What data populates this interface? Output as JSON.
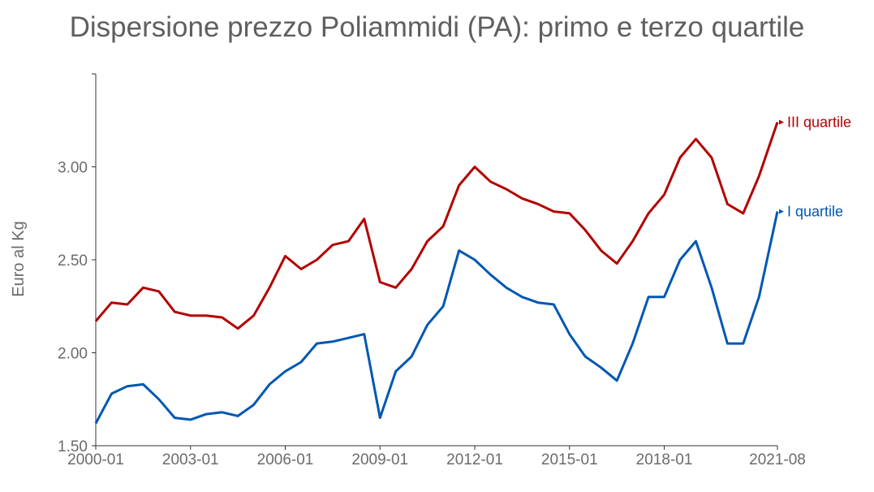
{
  "chart_data": {
    "type": "line",
    "title": "Dispersione prezzo Poliammidi (PA): primo e terzo quartile",
    "xlabel": "",
    "ylabel": "Euro al Kg",
    "ylim": [
      1.5,
      3.5
    ],
    "yticks": [
      "1.50",
      "2.00",
      "2.50",
      "3.00"
    ],
    "xticks": [
      "2000-01",
      "2003-01",
      "2006-01",
      "2009-01",
      "2012-01",
      "2015-01",
      "2018-01",
      "2021-08"
    ],
    "series": [
      {
        "name": "III quartile",
        "color": "#b30000",
        "points": [
          [
            "2000-01",
            2.17
          ],
          [
            "2000-07",
            2.27
          ],
          [
            "2001-01",
            2.26
          ],
          [
            "2001-07",
            2.35
          ],
          [
            "2002-01",
            2.33
          ],
          [
            "2002-07",
            2.22
          ],
          [
            "2003-01",
            2.2
          ],
          [
            "2003-07",
            2.2
          ],
          [
            "2004-01",
            2.19
          ],
          [
            "2004-07",
            2.13
          ],
          [
            "2005-01",
            2.2
          ],
          [
            "2005-07",
            2.35
          ],
          [
            "2006-01",
            2.52
          ],
          [
            "2006-07",
            2.45
          ],
          [
            "2007-01",
            2.5
          ],
          [
            "2007-07",
            2.58
          ],
          [
            "2008-01",
            2.6
          ],
          [
            "2008-07",
            2.72
          ],
          [
            "2009-01",
            2.38
          ],
          [
            "2009-07",
            2.35
          ],
          [
            "2010-01",
            2.45
          ],
          [
            "2010-07",
            2.6
          ],
          [
            "2011-01",
            2.68
          ],
          [
            "2011-07",
            2.9
          ],
          [
            "2012-01",
            3.0
          ],
          [
            "2012-07",
            2.92
          ],
          [
            "2013-01",
            2.88
          ],
          [
            "2013-07",
            2.83
          ],
          [
            "2014-01",
            2.8
          ],
          [
            "2014-07",
            2.76
          ],
          [
            "2015-01",
            2.75
          ],
          [
            "2015-07",
            2.66
          ],
          [
            "2016-01",
            2.55
          ],
          [
            "2016-07",
            2.48
          ],
          [
            "2017-01",
            2.6
          ],
          [
            "2017-07",
            2.75
          ],
          [
            "2018-01",
            2.85
          ],
          [
            "2018-07",
            3.05
          ],
          [
            "2019-01",
            3.15
          ],
          [
            "2019-07",
            3.05
          ],
          [
            "2020-01",
            2.8
          ],
          [
            "2020-07",
            2.75
          ],
          [
            "2021-01",
            2.95
          ],
          [
            "2021-08",
            3.24
          ]
        ]
      },
      {
        "name": "I quartile",
        "color": "#0057b3",
        "points": [
          [
            "2000-01",
            1.62
          ],
          [
            "2000-07",
            1.78
          ],
          [
            "2001-01",
            1.82
          ],
          [
            "2001-07",
            1.83
          ],
          [
            "2002-01",
            1.75
          ],
          [
            "2002-07",
            1.65
          ],
          [
            "2003-01",
            1.64
          ],
          [
            "2003-07",
            1.67
          ],
          [
            "2004-01",
            1.68
          ],
          [
            "2004-07",
            1.66
          ],
          [
            "2005-01",
            1.72
          ],
          [
            "2005-07",
            1.83
          ],
          [
            "2006-01",
            1.9
          ],
          [
            "2006-07",
            1.95
          ],
          [
            "2007-01",
            2.05
          ],
          [
            "2007-07",
            2.06
          ],
          [
            "2008-01",
            2.08
          ],
          [
            "2008-07",
            2.1
          ],
          [
            "2009-01",
            1.65
          ],
          [
            "2009-07",
            1.9
          ],
          [
            "2010-01",
            1.98
          ],
          [
            "2010-07",
            2.15
          ],
          [
            "2011-01",
            2.25
          ],
          [
            "2011-07",
            2.55
          ],
          [
            "2012-01",
            2.5
          ],
          [
            "2012-07",
            2.42
          ],
          [
            "2013-01",
            2.35
          ],
          [
            "2013-07",
            2.3
          ],
          [
            "2014-01",
            2.27
          ],
          [
            "2014-07",
            2.26
          ],
          [
            "2015-01",
            2.1
          ],
          [
            "2015-07",
            1.98
          ],
          [
            "2016-01",
            1.92
          ],
          [
            "2016-07",
            1.85
          ],
          [
            "2017-01",
            2.05
          ],
          [
            "2017-07",
            2.3
          ],
          [
            "2018-01",
            2.3
          ],
          [
            "2018-07",
            2.5
          ],
          [
            "2019-01",
            2.6
          ],
          [
            "2019-07",
            2.35
          ],
          [
            "2020-01",
            2.05
          ],
          [
            "2020-07",
            2.05
          ],
          [
            "2021-01",
            2.3
          ],
          [
            "2021-08",
            2.76
          ]
        ]
      }
    ]
  }
}
